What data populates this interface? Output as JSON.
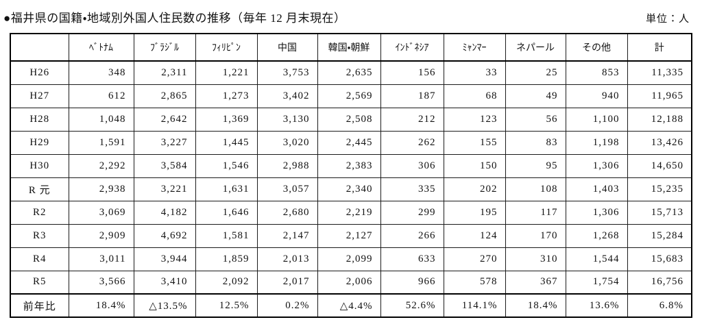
{
  "title": "●福井県の国籍・地域別外国人住民数の推移（毎年 12 月末現在）",
  "unit_label": "単位：人",
  "table": {
    "columns": [
      "",
      "ﾍﾞﾄﾅﾑ",
      "ﾌﾞﾗｼﾞﾙ",
      "ﾌｨﾘﾋﾟﾝ",
      "中国",
      "韓国・朝鮮",
      "ｲﾝﾄﾞﾈｼｱ",
      "ﾐｬﾝﾏｰ",
      "ネパール",
      "その他",
      "計"
    ],
    "rows": [
      {
        "label": "H26",
        "values": [
          "348",
          "2,311",
          "1,221",
          "3,753",
          "2,635",
          "156",
          "33",
          "25",
          "853",
          "11,335"
        ]
      },
      {
        "label": "H27",
        "values": [
          "612",
          "2,865",
          "1,273",
          "3,402",
          "2,569",
          "187",
          "68",
          "49",
          "940",
          "11,965"
        ]
      },
      {
        "label": "H28",
        "values": [
          "1,048",
          "2,642",
          "1,369",
          "3,130",
          "2,508",
          "212",
          "123",
          "56",
          "1,100",
          "12,188"
        ]
      },
      {
        "label": "H29",
        "values": [
          "1,591",
          "3,227",
          "1,445",
          "3,020",
          "2,445",
          "262",
          "155",
          "83",
          "1,198",
          "13,426"
        ]
      },
      {
        "label": "H30",
        "values": [
          "2,292",
          "3,584",
          "1,546",
          "2,988",
          "2,383",
          "306",
          "150",
          "95",
          "1,306",
          "14,650"
        ]
      },
      {
        "label": "R 元",
        "values": [
          "2,938",
          "3,221",
          "1,631",
          "3,057",
          "2,340",
          "335",
          "202",
          "108",
          "1,403",
          "15,235"
        ]
      },
      {
        "label": "R2",
        "values": [
          "3,069",
          "4,182",
          "1,646",
          "2,680",
          "2,219",
          "299",
          "195",
          "117",
          "1,306",
          "15,713"
        ]
      },
      {
        "label": "R3",
        "values": [
          "2,909",
          "4,692",
          "1,581",
          "2,147",
          "2,127",
          "266",
          "124",
          "170",
          "1,268",
          "15,284"
        ]
      },
      {
        "label": "R4",
        "values": [
          "3,011",
          "3,944",
          "1,859",
          "2,013",
          "2,099",
          "633",
          "270",
          "310",
          "1,544",
          "15,683"
        ]
      },
      {
        "label": "R5",
        "values": [
          "3,566",
          "3,410",
          "2,092",
          "2,017",
          "2,006",
          "966",
          "578",
          "367",
          "1,754",
          "16,756"
        ]
      },
      {
        "label": "前年比",
        "values": [
          "18.4%",
          "△13.5%",
          "12.5%",
          "0.2%",
          "△4.4%",
          "52.6%",
          "114.1%",
          "18.4%",
          "13.6%",
          "6.8%"
        ]
      }
    ]
  }
}
